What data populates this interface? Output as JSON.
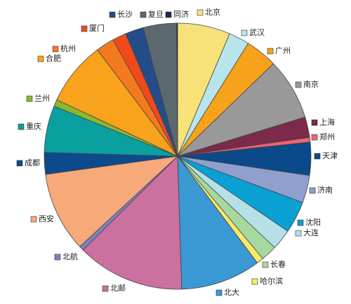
{
  "chart_data": {
    "type": "pie",
    "categories": [
      "北京",
      "武汉",
      "广州",
      "南京",
      "上海",
      "郑州",
      "天津",
      "济南",
      "沈阳",
      "大连",
      "长春",
      "哈尔滨",
      "北大",
      "北邮",
      "北航",
      "西安",
      "成都",
      "重庆",
      "兰州",
      "合肥",
      "杭州",
      "厦门",
      "长沙",
      "复旦",
      "同济"
    ],
    "values": [
      23,
      9,
      14,
      27,
      9,
      2,
      14.5,
      12,
      14,
      9,
      7,
      3,
      35,
      47,
      2,
      35,
      9.5,
      20.5,
      3,
      28,
      8,
      6,
      8,
      14.5,
      0.5
    ],
    "colors": [
      "#f7e27a",
      "#b8e4ec",
      "#f7a21b",
      "#999999",
      "#7b2a4c",
      "#f06470",
      "#0a4a8a",
      "#8fa0cf",
      "#0aa0d4",
      "#b5e0e6",
      "#a7d8a0",
      "#f7ea6a",
      "#3a98d3",
      "#cc70a0",
      "#8080c0",
      "#f7a97a",
      "#0c4a8c",
      "#0aa0a0",
      "#8ab830",
      "#f9a21b",
      "#f47a20",
      "#f04a1a",
      "#244c88",
      "#5c6870",
      "#1a2a50"
    ]
  }
}
